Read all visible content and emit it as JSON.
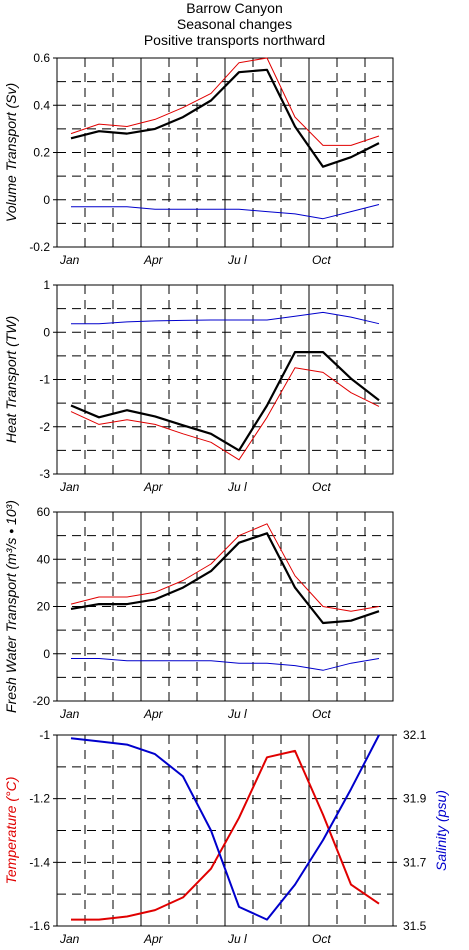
{
  "title": [
    "Barrow Canyon",
    "Seasonal changes",
    "Positive transports northward"
  ],
  "colors": {
    "black": "#000000",
    "red": "#e00000",
    "blue": "#0000cc"
  },
  "chart_data": [
    {
      "type": "line",
      "ylabel": "Volume Transport (Sv)",
      "ylim": [
        -0.2,
        0.6
      ],
      "yticks": [
        -0.2,
        0,
        0.2,
        0.4,
        0.6
      ],
      "ytick_labels": [
        "-0.2",
        "0",
        "0.2",
        "0.4",
        "0.6"
      ],
      "xlim": [
        0,
        12
      ],
      "x_months": [
        "Jan",
        "Apr",
        "Ju l",
        "Oct"
      ],
      "grid": true,
      "series": [
        {
          "color": "black",
          "x": [
            0.5,
            1.5,
            2.5,
            3.5,
            4.5,
            5.5,
            6.5,
            7.5,
            8.5,
            9.5,
            10.5,
            11.5
          ],
          "values": [
            0.26,
            0.29,
            0.28,
            0.3,
            0.35,
            0.42,
            0.54,
            0.55,
            0.31,
            0.14,
            0.18,
            0.24
          ]
        },
        {
          "color": "red",
          "x": [
            0.5,
            1.5,
            2.5,
            3.5,
            4.5,
            5.5,
            6.5,
            7.5,
            8.5,
            9.5,
            10.5,
            11.5
          ],
          "values": [
            0.28,
            0.32,
            0.31,
            0.34,
            0.39,
            0.45,
            0.58,
            0.6,
            0.35,
            0.23,
            0.23,
            0.27
          ]
        },
        {
          "color": "blue",
          "x": [
            0.5,
            1.5,
            2.5,
            3.5,
            4.5,
            5.5,
            6.5,
            7.5,
            8.5,
            9.5,
            10.5,
            11.5
          ],
          "values": [
            -0.03,
            -0.03,
            -0.03,
            -0.04,
            -0.04,
            -0.04,
            -0.04,
            -0.05,
            -0.06,
            -0.08,
            -0.05,
            -0.02
          ]
        }
      ]
    },
    {
      "type": "line",
      "ylabel": "Heat Transport (TW)",
      "ylim": [
        -3,
        1
      ],
      "yticks": [
        -3,
        -2,
        -1,
        0,
        1
      ],
      "ytick_labels": [
        "-3",
        "-2",
        "-1",
        "0",
        "1"
      ],
      "xlim": [
        0,
        12
      ],
      "x_months": [
        "Jan",
        "Apr",
        "Ju l",
        "Oct"
      ],
      "grid": true,
      "series": [
        {
          "color": "black",
          "x": [
            0.5,
            1.5,
            2.5,
            3.5,
            4.5,
            5.5,
            6.5,
            7.5,
            8.5,
            9.5,
            10.5,
            11.5
          ],
          "values": [
            -1.55,
            -1.8,
            -1.65,
            -1.78,
            -1.97,
            -2.15,
            -2.5,
            -1.55,
            -0.42,
            -0.42,
            -0.98,
            -1.44
          ]
        },
        {
          "color": "red",
          "x": [
            0.5,
            1.5,
            2.5,
            3.5,
            4.5,
            5.5,
            6.5,
            7.5,
            8.5,
            9.5,
            10.5,
            11.5
          ],
          "values": [
            -1.68,
            -1.95,
            -1.85,
            -1.95,
            -2.15,
            -2.33,
            -2.7,
            -1.8,
            -0.75,
            -0.85,
            -1.28,
            -1.57
          ]
        },
        {
          "color": "blue",
          "x": [
            0.5,
            1.5,
            2.5,
            3.5,
            4.5,
            5.5,
            6.5,
            7.5,
            8.5,
            9.5,
            10.5,
            11.5
          ],
          "values": [
            0.18,
            0.18,
            0.22,
            0.24,
            0.25,
            0.26,
            0.26,
            0.26,
            0.34,
            0.42,
            0.32,
            0.18
          ]
        }
      ]
    },
    {
      "type": "line",
      "ylabel": "Fresh Water Transport (m³/s • 10³)",
      "ylim": [
        -20,
        60
      ],
      "yticks": [
        -20,
        0,
        20,
        40,
        60
      ],
      "ytick_labels": [
        "-20",
        "0",
        "20",
        "40",
        "60"
      ],
      "xlim": [
        0,
        12
      ],
      "x_months": [
        "Jan",
        "Apr",
        "Ju l",
        "Oct"
      ],
      "grid": true,
      "series": [
        {
          "color": "black",
          "x": [
            0.5,
            1.5,
            2.5,
            3.5,
            4.5,
            5.5,
            6.5,
            7.5,
            8.5,
            9.5,
            10.5,
            11.5
          ],
          "values": [
            19,
            21,
            21,
            23,
            28,
            35,
            47,
            51,
            28,
            13,
            14,
            18
          ]
        },
        {
          "color": "red",
          "x": [
            0.5,
            1.5,
            2.5,
            3.5,
            4.5,
            5.5,
            6.5,
            7.5,
            8.5,
            9.5,
            10.5,
            11.5
          ],
          "values": [
            21,
            24,
            24,
            26,
            31,
            38,
            50,
            55,
            33,
            20,
            18,
            20
          ]
        },
        {
          "color": "blue",
          "x": [
            0.5,
            1.5,
            2.5,
            3.5,
            4.5,
            5.5,
            6.5,
            7.5,
            8.5,
            9.5,
            10.5,
            11.5
          ],
          "values": [
            -2,
            -2,
            -3,
            -3,
            -3,
            -3,
            -4,
            -4,
            -5,
            -7,
            -4,
            -2
          ]
        }
      ]
    },
    {
      "type": "line",
      "ylabel": "Temperature (°C)",
      "ylabel_right": "Salinity (psu)",
      "ylim": [
        -1.6,
        -1.0
      ],
      "yticks": [
        -1.6,
        -1.4,
        -1.2,
        -1.0
      ],
      "ytick_labels": [
        "-1.6",
        "-1.4",
        "-1.2",
        "-1"
      ],
      "ylim_right": [
        31.5,
        32.1
      ],
      "yticks_right": [
        31.5,
        31.7,
        31.9,
        32.1
      ],
      "ytick_labels_right": [
        "31.5",
        "31.7",
        "31.9",
        "32.1"
      ],
      "xlim": [
        0,
        12
      ],
      "x_months": [
        "Jan",
        "Apr",
        "Ju l",
        "Oct"
      ],
      "grid": true,
      "series": [
        {
          "color": "red",
          "axis": "left",
          "x": [
            0.5,
            1.5,
            2.5,
            3.5,
            4.5,
            5.5,
            6.5,
            7.5,
            8.5,
            9.5,
            10.5,
            11.5
          ],
          "values": [
            -1.58,
            -1.58,
            -1.57,
            -1.55,
            -1.51,
            -1.42,
            -1.26,
            -1.07,
            -1.05,
            -1.25,
            -1.47,
            -1.53
          ]
        },
        {
          "color": "blue",
          "axis": "right",
          "x": [
            0.5,
            1.5,
            2.5,
            3.5,
            4.5,
            5.5,
            6.5,
            7.5,
            8.5,
            9.5,
            10.5,
            11.5
          ],
          "values": [
            32.09,
            32.08,
            32.07,
            32.04,
            31.97,
            31.8,
            31.56,
            31.52,
            31.63,
            31.77,
            31.93,
            32.1
          ]
        }
      ]
    }
  ]
}
